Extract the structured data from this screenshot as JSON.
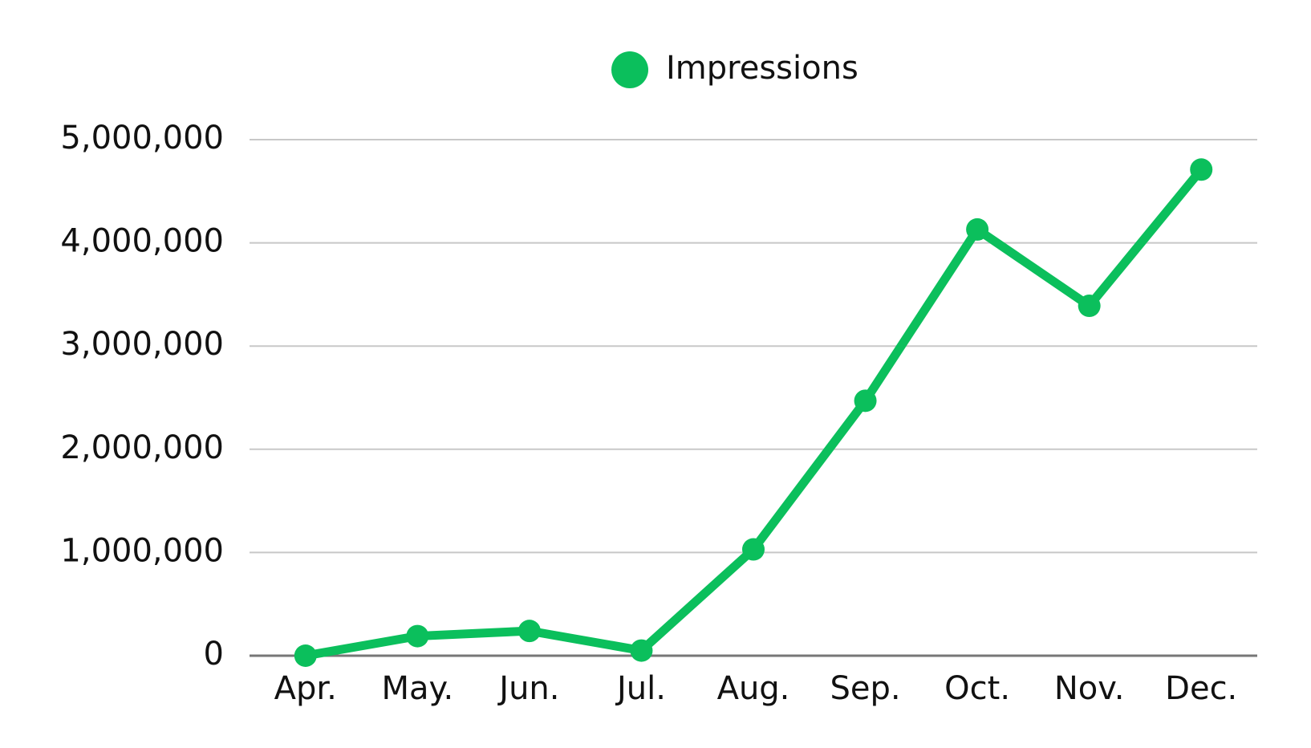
{
  "chart_data": {
    "type": "line",
    "categories": [
      "Apr.",
      "May.",
      "Jun.",
      "Jul.",
      "Aug.",
      "Sep.",
      "Oct.",
      "Nov.",
      "Dec."
    ],
    "series": [
      {
        "name": "Impressions",
        "color": "#0bbf5c",
        "values": [
          0,
          190000,
          240000,
          50000,
          1030000,
          2470000,
          4130000,
          3390000,
          4710000
        ]
      }
    ],
    "ylim": [
      0,
      5000000
    ],
    "yticks": [
      0,
      {
        "value": 1000000,
        "label": "1,000,000"
      },
      {
        "value": 2000000,
        "label": "2,000,000"
      },
      {
        "value": 3000000,
        "label": "3,000,000"
      },
      {
        "value": 4000000,
        "label": "4,000,000"
      },
      {
        "value": 5000000,
        "label": "5,000,000"
      }
    ],
    "grid": true,
    "legend": "top"
  }
}
